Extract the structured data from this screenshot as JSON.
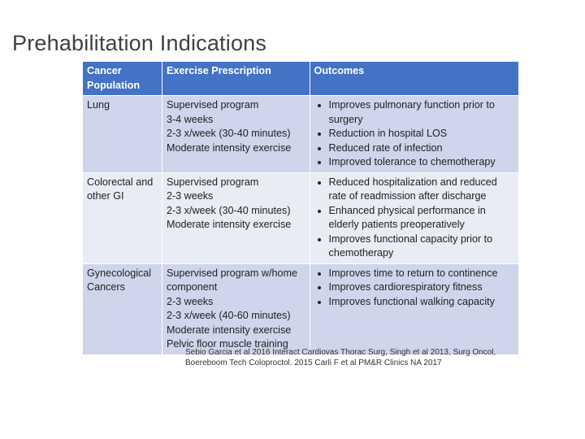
{
  "title": "Prehabilitation Indications",
  "table": {
    "header": [
      "Cancer Population",
      "Exercise Prescription",
      "Outcomes"
    ],
    "rows": [
      {
        "population": "Lung",
        "prescription": [
          "Supervised program",
          "3-4 weeks",
          "2-3 x/week (30-40 minutes)",
          "Moderate intensity exercise"
        ],
        "outcomes": [
          "Improves pulmonary function prior to surgery",
          "Reduction in hospital LOS",
          "Reduced rate of infection",
          "Improved tolerance to chemotherapy"
        ]
      },
      {
        "population": "Colorectal and other GI",
        "prescription": [
          "Supervised program",
          "2-3 weeks",
          "2-3 x/week (30-40 minutes)",
          "Moderate intensity exercise"
        ],
        "outcomes": [
          "Reduced hospitalization and reduced rate of readmission after discharge",
          "Enhanced physical performance in elderly patients preoperatively",
          "Improves functional capacity prior to chemotherapy"
        ]
      },
      {
        "population": "Gynecological Cancers",
        "prescription": [
          "Supervised program w/home component",
          "2-3 weeks",
          "2-3 x/week (40-60 minutes)",
          "Moderate intensity exercise",
          "Pelvic floor muscle training"
        ],
        "outcomes": [
          "Improves time to return to continence",
          "Improves cardiorespiratory fitness",
          "Improves functional walking capacity"
        ]
      }
    ]
  },
  "citation": [
    "Sebio Garcia et al 2016 Interact Cardiovas Thorac Surg, Singh et al 2013, Surg Oncol,",
    "Boereboom Tech Coloproctol. 2015 Carli F et al PM&R Clinics NA 2017"
  ]
}
